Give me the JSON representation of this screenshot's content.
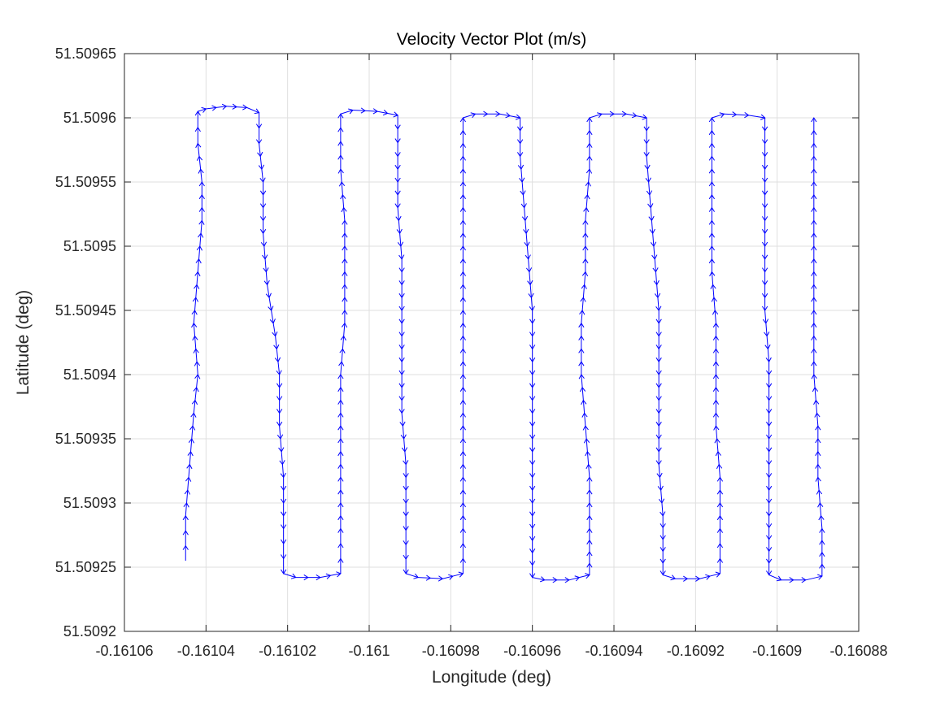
{
  "chart_data": {
    "type": "quiver",
    "title": "Velocity Vector Plot (m/s)",
    "xlabel": "Longitude (deg)",
    "ylabel": "Latitude (deg)",
    "xlim": [
      -0.16106,
      -0.16088
    ],
    "ylim": [
      51.5092,
      51.50965
    ],
    "xticks": [
      -0.16106,
      -0.16104,
      -0.16102,
      -0.161,
      -0.16098,
      -0.16096,
      -0.16094,
      -0.16092,
      -0.1609,
      -0.16088
    ],
    "xtick_labels": [
      "-0.16106",
      "-0.16104",
      "-0.16102",
      "-0.161",
      "-0.16098",
      "-0.16096",
      "-0.16094",
      "-0.16092",
      "-0.1609",
      "-0.16088"
    ],
    "yticks": [
      51.5092,
      51.50925,
      51.5093,
      51.50935,
      51.5094,
      51.50945,
      51.5095,
      51.50955,
      51.5096,
      51.50965
    ],
    "ytick_labels": [
      "51.5092",
      "51.50925",
      "51.5093",
      "51.50935",
      "51.5094",
      "51.50945",
      "51.5095",
      "51.50955",
      "51.5096",
      "51.50965"
    ],
    "grid": true,
    "color": "#0000ff",
    "path": [
      [
        -0.161045,
        51.509255
      ],
      [
        -0.161045,
        51.50929
      ],
      [
        -0.161044,
        51.50933
      ],
      [
        -0.161043,
        51.50937
      ],
      [
        -0.161042,
        51.5094
      ],
      [
        -0.161043,
        51.50944
      ],
      [
        -0.161042,
        51.50948
      ],
      [
        -0.161041,
        51.50952
      ],
      [
        -0.161041,
        51.50955
      ],
      [
        -0.161042,
        51.50958
      ],
      [
        -0.161042,
        51.509605
      ],
      [
        -0.16104,
        51.509607
      ],
      [
        -0.161035,
        51.509609
      ],
      [
        -0.16103,
        51.509608
      ],
      [
        -0.161027,
        51.509604
      ],
      [
        -0.161027,
        51.50958
      ],
      [
        -0.161026,
        51.50955
      ],
      [
        -0.161026,
        51.50951
      ],
      [
        -0.161025,
        51.50947
      ],
      [
        -0.161023,
        51.50943
      ],
      [
        -0.161022,
        51.5094
      ],
      [
        -0.161022,
        51.50936
      ],
      [
        -0.161021,
        51.50932
      ],
      [
        -0.161021,
        51.50928
      ],
      [
        -0.161021,
        51.509245
      ],
      [
        -0.161018,
        51.509242
      ],
      [
        -0.161012,
        51.509242
      ],
      [
        -0.161007,
        51.509245
      ],
      [
        -0.161007,
        51.50928
      ],
      [
        -0.161007,
        51.50932
      ],
      [
        -0.161007,
        51.50936
      ],
      [
        -0.161007,
        51.5094
      ],
      [
        -0.161006,
        51.50944
      ],
      [
        -0.161006,
        51.50948
      ],
      [
        -0.161006,
        51.50952
      ],
      [
        -0.161007,
        51.50956
      ],
      [
        -0.161007,
        51.509603
      ],
      [
        -0.161004,
        51.509606
      ],
      [
        -0.160998,
        51.509605
      ],
      [
        -0.160993,
        51.509602
      ],
      [
        -0.160993,
        51.50957
      ],
      [
        -0.160993,
        51.50953
      ],
      [
        -0.160992,
        51.50949
      ],
      [
        -0.160992,
        51.50945
      ],
      [
        -0.160992,
        51.50941
      ],
      [
        -0.160992,
        51.50937
      ],
      [
        -0.160991,
        51.50933
      ],
      [
        -0.160991,
        51.50929
      ],
      [
        -0.160991,
        51.509245
      ],
      [
        -0.160988,
        51.509242
      ],
      [
        -0.160982,
        51.509241
      ],
      [
        -0.160977,
        51.509245
      ],
      [
        -0.160977,
        51.50928
      ],
      [
        -0.160977,
        51.50932
      ],
      [
        -0.160977,
        51.50936
      ],
      [
        -0.160977,
        51.5094
      ],
      [
        -0.160977,
        51.50944
      ],
      [
        -0.160977,
        51.50948
      ],
      [
        -0.160977,
        51.50952
      ],
      [
        -0.160977,
        51.50956
      ],
      [
        -0.160977,
        51.5096
      ],
      [
        -0.160974,
        51.509603
      ],
      [
        -0.160968,
        51.509603
      ],
      [
        -0.160963,
        51.5096
      ],
      [
        -0.160963,
        51.50957
      ],
      [
        -0.160962,
        51.50953
      ],
      [
        -0.160961,
        51.50949
      ],
      [
        -0.16096,
        51.50945
      ],
      [
        -0.16096,
        51.50941
      ],
      [
        -0.16096,
        51.50937
      ],
      [
        -0.16096,
        51.50933
      ],
      [
        -0.16096,
        51.50929
      ],
      [
        -0.16096,
        51.509242
      ],
      [
        -0.160957,
        51.50924
      ],
      [
        -0.160951,
        51.50924
      ],
      [
        -0.160946,
        51.509244
      ],
      [
        -0.160946,
        51.50928
      ],
      [
        -0.160946,
        51.50932
      ],
      [
        -0.160947,
        51.50936
      ],
      [
        -0.160948,
        51.5094
      ],
      [
        -0.160948,
        51.50944
      ],
      [
        -0.160947,
        51.50948
      ],
      [
        -0.160947,
        51.50952
      ],
      [
        -0.160946,
        51.50956
      ],
      [
        -0.160946,
        51.5096
      ],
      [
        -0.160943,
        51.509603
      ],
      [
        -0.160937,
        51.509603
      ],
      [
        -0.160932,
        51.5096
      ],
      [
        -0.160932,
        51.50957
      ],
      [
        -0.160931,
        51.50953
      ],
      [
        -0.16093,
        51.50949
      ],
      [
        -0.160929,
        51.50945
      ],
      [
        -0.160929,
        51.50941
      ],
      [
        -0.160929,
        51.50937
      ],
      [
        -0.160929,
        51.50933
      ],
      [
        -0.160928,
        51.50929
      ],
      [
        -0.160928,
        51.509244
      ],
      [
        -0.160925,
        51.509241
      ],
      [
        -0.160919,
        51.509241
      ],
      [
        -0.160914,
        51.509245
      ],
      [
        -0.160914,
        51.50928
      ],
      [
        -0.160914,
        51.50932
      ],
      [
        -0.160915,
        51.50936
      ],
      [
        -0.160915,
        51.5094
      ],
      [
        -0.160915,
        51.50944
      ],
      [
        -0.160916,
        51.50948
      ],
      [
        -0.160916,
        51.50952
      ],
      [
        -0.160916,
        51.50956
      ],
      [
        -0.160916,
        51.5096
      ],
      [
        -0.160913,
        51.509603
      ],
      [
        -0.160907,
        51.509602
      ],
      [
        -0.160903,
        51.5096
      ],
      [
        -0.160903,
        51.50957
      ],
      [
        -0.160903,
        51.50953
      ],
      [
        -0.160903,
        51.50949
      ],
      [
        -0.160903,
        51.50945
      ],
      [
        -0.160902,
        51.50941
      ],
      [
        -0.160902,
        51.50937
      ],
      [
        -0.160902,
        51.50933
      ],
      [
        -0.160902,
        51.50929
      ],
      [
        -0.160902,
        51.509244
      ],
      [
        -0.160899,
        51.50924
      ],
      [
        -0.160893,
        51.50924
      ],
      [
        -0.160889,
        51.509243
      ],
      [
        -0.160889,
        51.50928
      ],
      [
        -0.16089,
        51.50932
      ],
      [
        -0.16089,
        51.50936
      ],
      [
        -0.160891,
        51.5094
      ],
      [
        -0.160891,
        51.50944
      ],
      [
        -0.160891,
        51.50948
      ],
      [
        -0.160891,
        51.50952
      ],
      [
        -0.160891,
        51.50956
      ],
      [
        -0.160891,
        51.5096
      ]
    ]
  }
}
